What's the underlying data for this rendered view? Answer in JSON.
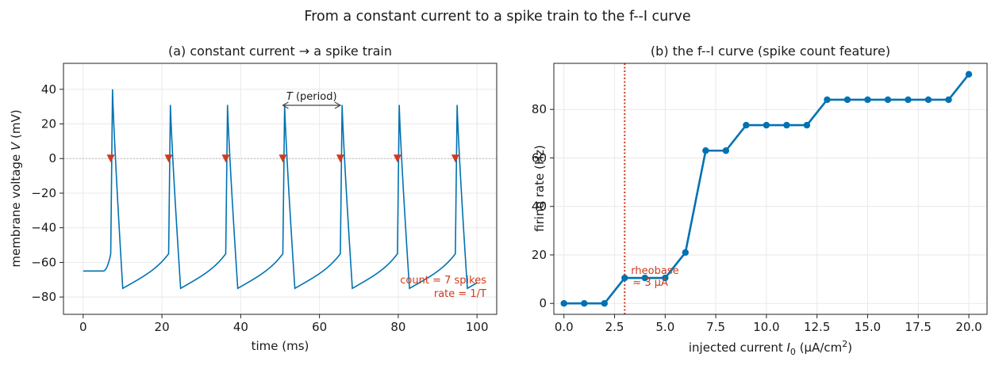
{
  "figure_title": "From a constant current to a spike train to the f--I curve",
  "colors": {
    "trace": "#0072b2",
    "marker": "#d03a1c",
    "annotation": "#d03a1c",
    "threshold": "#bbbbbb"
  },
  "chart_data": [
    {
      "id": "a",
      "type": "line",
      "title": "(a) constant current → a spike train",
      "xlabel": "time (ms)",
      "ylabel_prefix": "membrane voltage ",
      "ylabel_var": "V",
      "ylabel_unit": " (mV)",
      "xlim": [
        -5,
        105
      ],
      "ylim": [
        -90,
        55
      ],
      "xticks": [
        0,
        20,
        40,
        60,
        80,
        100
      ],
      "yticks": [
        -80,
        -60,
        -40,
        -20,
        0,
        20,
        40
      ],
      "resting_potential": -65,
      "current_onset_ms": 5,
      "spike_times": [
        7.0,
        21.7,
        36.2,
        50.7,
        65.3,
        79.8,
        94.5
      ],
      "spike_peaks": [
        40,
        31,
        31,
        31,
        31,
        31,
        31
      ],
      "trough": -75,
      "pre_spike_level": -55,
      "threshold_line": 0,
      "period_annotation": {
        "var": "T",
        "text": " (period)",
        "from": 50.7,
        "to": 65.3
      },
      "count_annotation": [
        "count = 7 spikes",
        "rate  = 1/T"
      ]
    },
    {
      "id": "b",
      "type": "line",
      "title": "(b) the f--I curve (spike count feature)",
      "xlabel_prefix": "injected current ",
      "xlabel_var": "I",
      "xlabel_sub": "0",
      "xlabel_unit_pre": " (μA/cm",
      "xlabel_unit_sup": "2",
      "xlabel_unit_post": ")",
      "ylabel": "firing rate (Hz)",
      "xlim": [
        -0.5,
        20.9
      ],
      "ylim": [
        -4.5,
        99
      ],
      "xticks": [
        "0.0",
        "2.5",
        "5.0",
        "7.5",
        "10.0",
        "12.5",
        "15.0",
        "17.5",
        "20.0"
      ],
      "yticks": [
        0,
        20,
        40,
        60,
        80
      ],
      "x": [
        0,
        1,
        2,
        3,
        4,
        5,
        6,
        7,
        8,
        9,
        10,
        11,
        12,
        13,
        14,
        15,
        16,
        17,
        18,
        19,
        20
      ],
      "y": [
        0,
        0,
        0,
        10.5,
        10.5,
        10.5,
        21,
        63,
        63,
        73.5,
        73.5,
        73.5,
        73.5,
        84,
        84,
        84,
        84,
        84,
        84,
        84,
        94.5
      ],
      "rheobase": 3,
      "rheobase_annotation": [
        "rheobase",
        "≈ 3 μA"
      ]
    }
  ]
}
